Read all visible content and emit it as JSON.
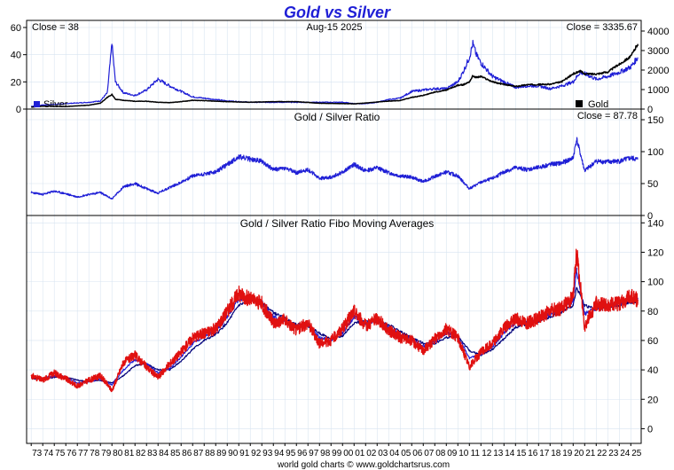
{
  "chart_data": [
    {
      "type": "line",
      "title": "Gold vs Silver",
      "date_label": "Aug-15  2025",
      "left_readout": "Close = 38",
      "right_readout": "Close = 3335.67",
      "legend": [
        "Silver",
        "Gold"
      ],
      "colors": {
        "Silver": "#1f1fd6",
        "Gold": "#000000"
      },
      "y_left": {
        "ticks": [
          "0",
          "20",
          "40",
          "60"
        ],
        "range": [
          0,
          60
        ]
      },
      "y_right": {
        "ticks": [
          "0",
          "1000",
          "2000",
          "3000",
          "4000"
        ],
        "range": [
          0,
          4000
        ]
      },
      "x": [
        1973,
        1974,
        1976,
        1978,
        1979,
        1979.6,
        1980,
        1980.3,
        1981,
        1982,
        1983,
        1984,
        1985,
        1986,
        1987,
        1988,
        1990,
        1992,
        1994,
        1996,
        1998,
        2000,
        2001,
        2002,
        2003,
        2004,
        2005,
        2006,
        2007,
        2008,
        2009,
        2010,
        2010.5,
        2011,
        2011.3,
        2011.6,
        2012,
        2013,
        2014,
        2015,
        2016,
        2017,
        2018,
        2019,
        2020,
        2020.6,
        2021,
        2022,
        2023,
        2024,
        2025,
        2025.6
      ],
      "series": [
        {
          "name": "Silver",
          "values": [
            2,
            3,
            4,
            5,
            6,
            12,
            48,
            20,
            12,
            10,
            14,
            22,
            17,
            13,
            9,
            8,
            6,
            5,
            5,
            5,
            5,
            5,
            4,
            4,
            5,
            7,
            8,
            13,
            14,
            15,
            15,
            20,
            28,
            38,
            48,
            40,
            34,
            24,
            20,
            16,
            17,
            17,
            15,
            17,
            20,
            27,
            26,
            22,
            24,
            27,
            31,
            38
          ]
        },
        {
          "name": "Gold",
          "values": [
            100,
            150,
            130,
            200,
            300,
            600,
            750,
            500,
            450,
            400,
            400,
            350,
            330,
            380,
            450,
            430,
            380,
            350,
            380,
            380,
            300,
            280,
            270,
            310,
            360,
            410,
            440,
            600,
            700,
            870,
            970,
            1220,
            1250,
            1400,
            1700,
            1620,
            1670,
            1400,
            1260,
            1160,
            1250,
            1260,
            1270,
            1400,
            1800,
            1950,
            1800,
            1800,
            1900,
            2300,
            2700,
            3335.67
          ]
        }
      ]
    },
    {
      "type": "line",
      "title": "Gold / Silver Ratio",
      "right_readout": "Close = 87.78",
      "y_right": {
        "ticks": [
          "0",
          "50",
          "100",
          "150"
        ],
        "range": [
          0,
          150
        ]
      },
      "x": [
        1973,
        1974,
        1975,
        1976,
        1977,
        1978,
        1979,
        1980,
        1981,
        1982,
        1983,
        1984,
        1985,
        1986,
        1987,
        1988,
        1989,
        1990,
        1991,
        1992,
        1993,
        1994,
        1995,
        1996,
        1997,
        1998,
        1999,
        2000,
        2001,
        2002,
        2003,
        2004,
        2005,
        2006,
        2007,
        2008,
        2009,
        2010,
        2011,
        2012,
        2013,
        2014,
        2015,
        2016,
        2017,
        2018,
        2019,
        2020,
        2020.3,
        2021,
        2022,
        2023,
        2024,
        2025,
        2025.6
      ],
      "series": [
        {
          "name": "Gold / Silver Ratio",
          "values": [
            36,
            33,
            38,
            34,
            29,
            33,
            36,
            26,
            45,
            50,
            42,
            35,
            44,
            52,
            62,
            65,
            68,
            80,
            92,
            88,
            85,
            72,
            74,
            67,
            72,
            58,
            60,
            68,
            80,
            70,
            75,
            67,
            62,
            60,
            53,
            61,
            68,
            62,
            42,
            52,
            58,
            68,
            75,
            72,
            75,
            80,
            82,
            90,
            120,
            70,
            85,
            84,
            85,
            90,
            87.78
          ]
        }
      ]
    },
    {
      "type": "line",
      "title": "Gold / Silver Ratio Fibo Moving Averages",
      "y_right": {
        "ticks": [
          "0",
          "20",
          "40",
          "60",
          "80",
          "100",
          "120",
          "140"
        ],
        "range": [
          -10,
          145
        ]
      },
      "x_ticks": [
        "73",
        "74",
        "75",
        "76",
        "77",
        "78",
        "79",
        "80",
        "81",
        "82",
        "83",
        "84",
        "85",
        "86",
        "87",
        "88",
        "89",
        "90",
        "91",
        "92",
        "93",
        "94",
        "95",
        "96",
        "97",
        "98",
        "99",
        "00",
        "01",
        "02",
        "03",
        "04",
        "05",
        "06",
        "07",
        "08",
        "09",
        "10",
        "11",
        "12",
        "13",
        "14",
        "15",
        "16",
        "17",
        "18",
        "19",
        "20",
        "21",
        "22",
        "23",
        "24",
        "25"
      ],
      "x": [
        1973,
        1974,
        1975,
        1976,
        1977,
        1978,
        1979,
        1980,
        1981,
        1982,
        1983,
        1984,
        1985,
        1986,
        1987,
        1988,
        1989,
        1990,
        1991,
        1992,
        1993,
        1994,
        1995,
        1996,
        1997,
        1998,
        1999,
        2000,
        2001,
        2002,
        2003,
        2004,
        2005,
        2006,
        2007,
        2008,
        2009,
        2010,
        2011,
        2012,
        2013,
        2014,
        2015,
        2016,
        2017,
        2018,
        2019,
        2020,
        2020.3,
        2021,
        2022,
        2023,
        2024,
        2025,
        2025.6
      ],
      "series": [
        {
          "name": "ratio",
          "values": [
            36,
            33,
            38,
            34,
            29,
            33,
            36,
            26,
            45,
            50,
            42,
            35,
            44,
            52,
            62,
            65,
            68,
            80,
            92,
            88,
            85,
            72,
            74,
            67,
            72,
            58,
            60,
            68,
            80,
            70,
            75,
            67,
            62,
            60,
            53,
            61,
            68,
            62,
            42,
            52,
            58,
            68,
            75,
            72,
            75,
            80,
            82,
            90,
            120,
            70,
            85,
            84,
            85,
            90,
            87.78
          ]
        },
        {
          "name": "ma-short",
          "values": [
            35,
            34,
            36,
            35,
            31,
            32,
            34,
            30,
            40,
            47,
            44,
            38,
            41,
            49,
            58,
            63,
            66,
            76,
            88,
            88,
            86,
            76,
            74,
            69,
            71,
            62,
            60,
            65,
            76,
            72,
            74,
            69,
            64,
            61,
            56,
            59,
            65,
            63,
            48,
            50,
            56,
            65,
            72,
            72,
            74,
            78,
            81,
            87,
            108,
            78,
            82,
            84,
            85,
            88,
            88
          ]
        },
        {
          "name": "ma-long",
          "values": [
            34,
            34,
            35,
            35,
            33,
            32,
            33,
            31,
            36,
            43,
            44,
            40,
            40,
            46,
            54,
            60,
            64,
            72,
            84,
            87,
            86,
            79,
            75,
            71,
            70,
            65,
            61,
            63,
            72,
            73,
            73,
            71,
            66,
            62,
            58,
            58,
            62,
            63,
            53,
            50,
            54,
            61,
            69,
            71,
            73,
            76,
            79,
            84,
            96,
            84,
            81,
            83,
            84,
            86,
            87
          ]
        }
      ]
    }
  ],
  "footer": "world gold charts © www.goldchartsrus.com",
  "colors": {
    "blue": "#1f1fd6",
    "red": "#e01010",
    "navy": "#00007a",
    "grid": "#d8e4f0"
  }
}
